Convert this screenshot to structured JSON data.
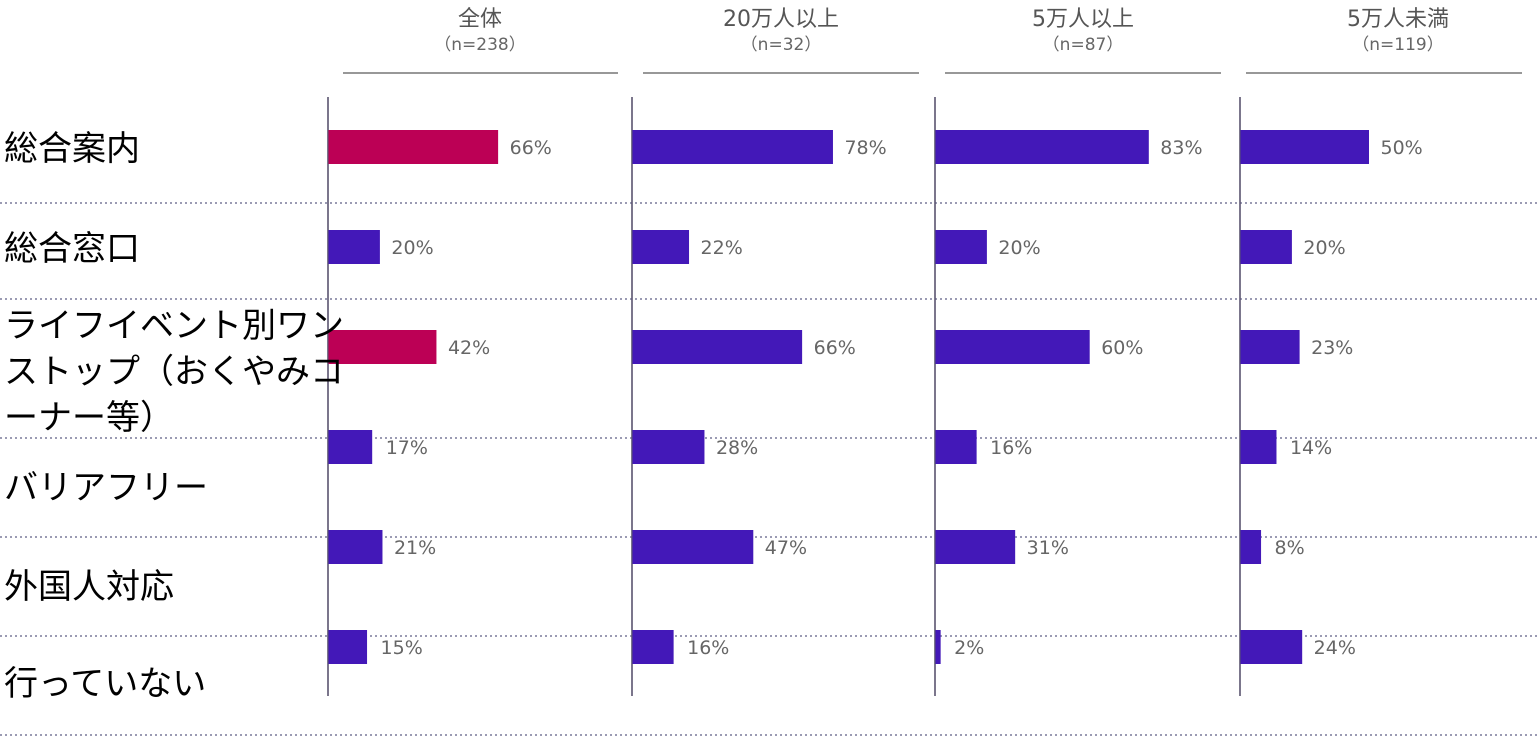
{
  "chart_data": {
    "type": "bar",
    "orientation": "horizontal",
    "categories": [
      "総合案内",
      "総合窓口",
      "ライフイベント別ワンストップ（おくやみコーナー等）",
      "バリアフリー",
      "外国人対応",
      "行っていない"
    ],
    "category_lines": [
      [
        "総合案内"
      ],
      [
        "総合窓口"
      ],
      [
        "ライフイベント別ワン",
        "ストップ（おくやみコ",
        "ーナー等）"
      ],
      [
        "バリアフリー"
      ],
      [
        "外国人対応"
      ],
      [
        "行っていない"
      ]
    ],
    "panels": [
      {
        "title": "全体",
        "n_label": "（n=238）",
        "values": [
          66,
          20,
          42,
          17,
          21,
          15
        ],
        "highlight": [
          0,
          2
        ]
      },
      {
        "title": "20万人以上",
        "n_label": "（n=32）",
        "values": [
          78,
          22,
          66,
          28,
          47,
          16
        ],
        "highlight": []
      },
      {
        "title": "5万人以上",
        "n_label": "（n=87）",
        "values": [
          83,
          20,
          60,
          16,
          31,
          2
        ],
        "highlight": []
      },
      {
        "title": "5万人未満",
        "n_label": "（n=119）",
        "values": [
          50,
          20,
          23,
          14,
          8,
          24
        ],
        "highlight": []
      }
    ],
    "value_suffix": "%",
    "colors": {
      "bar": "#4318B8",
      "highlight": "#BC0055",
      "axis": "#5a5470",
      "divider": "#7a7a9a"
    },
    "grid": false
  }
}
